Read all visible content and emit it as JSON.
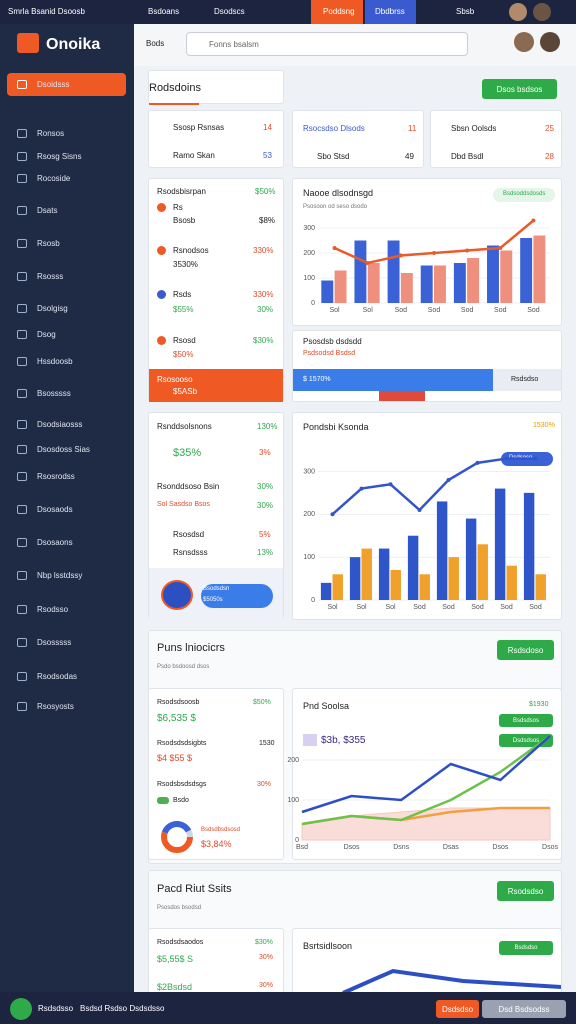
{
  "topbar": {
    "app": "Smrla Bsanid Dsoosb",
    "tabs": [
      "Bsdoans",
      "Dsodscs",
      "Poddsng",
      "Dbdbrss"
    ],
    "user": "Sbsb"
  },
  "brand": "Onoika",
  "search": {
    "label": "Bods",
    "placeholder": "Fonns bsalsm"
  },
  "nav": [
    "Dsoidsss",
    "Ronsos",
    "Rsosg Sisns",
    "Rocoside",
    "Dsats",
    "Rsosb",
    "Rsosss",
    "Dsolgisg",
    "Dsog",
    "Hssdoosb",
    "Bsosssss",
    "Dsodsiaosss",
    "Dsosdoss Sias",
    "Rsosrodss",
    "Dsosaods",
    "Dsosaons",
    "Nbp lsstdssy",
    "Rsodsso",
    "Dsosssss",
    "Rsodsodas",
    "Rsosyosts"
  ],
  "header": {
    "title": "Rodsdoins",
    "button": "Dsos bsdsos"
  },
  "stat_cards": [
    {
      "rows": [
        {
          "label": "Ssosp Rsnsas",
          "value": "14"
        },
        {
          "label": "Ramo Skan",
          "value": "53"
        }
      ]
    },
    {
      "rows": [
        {
          "label": "Rsocsdso Dlsods",
          "value": "11"
        },
        {
          "label": "Sbo Stsd",
          "value": "49"
        }
      ]
    },
    {
      "rows": [
        {
          "label": "Sbsn Oolsds",
          "value": "25"
        },
        {
          "label": "Dbd Bsdl",
          "value": "28"
        }
      ]
    }
  ],
  "list_card": {
    "title": "Rsodsbisrpan",
    "value": "$50%",
    "items": [
      {
        "label": "Rs",
        "sub": "Bsosb",
        "value": "$8%"
      },
      {
        "label": "Rsnodsos",
        "sub": "3530%",
        "value": "330%"
      },
      {
        "label": "Rsds",
        "sub": "$55%",
        "value": "330%",
        "sub_value": "30%"
      },
      {
        "label": "Rsosd",
        "sub": "$50%",
        "value": "$30%"
      }
    ],
    "footer": "Rsosooso",
    "footer_value": "$5ASb"
  },
  "progress_card": {
    "title": "Psosdsb dsdsdd",
    "subtitle": "Psdsodsd Bsdsd",
    "bar_label": "$ 1570%",
    "side": "Rsdsdso"
  },
  "list_card_2": {
    "title": "Rsnddsolsnons",
    "value": "130%",
    "items": [
      {
        "label": "$35%",
        "value": "3%"
      },
      {
        "label": "Rsonddsoso Bsin",
        "value": "30%"
      },
      {
        "label": "Sol Sasdso Bsos",
        "value": "30%"
      },
      {
        "label": "Rsosdsd",
        "value": "5%"
      },
      {
        "label": "Rsnsdsss",
        "value": "13%"
      }
    ],
    "pill": "Bsodsdsn",
    "pill_value": "$5050s"
  },
  "section_2": {
    "title": "Puns lniocicrs",
    "subtitle": "Psdo bsdoosd dsos",
    "button": "Rsdsdoso",
    "card": {
      "items": [
        {
          "label": "Rsodsdsoosb",
          "value": "$50%",
          "sub": "$6,535 $"
        },
        {
          "label": "Rsodsdsdsigbts",
          "value": "1530",
          "sub": "$4 $55 $"
        },
        {
          "label": "Rsodsbsdsdsgs",
          "value": "30%",
          "sub": "Bsdo"
        }
      ],
      "donut_label": "Bsdsdbsdsosd",
      "donut_value": "$3,84%"
    }
  },
  "section_3": {
    "title": "Pacd Riut Ssits",
    "subtitle": "Psosdos bsodsd",
    "button": "Rsodsdso",
    "card": {
      "items": [
        {
          "label": "Rsodsdsaodos",
          "value": "$30%"
        },
        {
          "label": "$5,55$ S",
          "value": "30%"
        },
        {
          "label": "$2Bsdsd",
          "value": "30%"
        }
      ]
    },
    "chart_title": "Bsrtsidlsoon",
    "chart_badge": "Bsdsdso"
  },
  "bottom_bar": {
    "icon_label": "Rsdsdsso",
    "text": "Bsdsd Rsdso Dsdsdsso",
    "button_1": "Dsdsdso",
    "button_2": "Dsd Bsdsodss"
  },
  "chart_data": [
    {
      "type": "bar",
      "title": "Naooe dlsodnsgd",
      "subtitle": "Psosoon od seso dsodo",
      "badge": "Bsdsoddsdosds",
      "categories": [
        "Sol",
        "Sol",
        "Sod",
        "Sod",
        "Sod",
        "Sod",
        "Sod"
      ],
      "series": [
        {
          "color": "#3a62d6",
          "values": [
            90,
            250,
            250,
            150,
            160,
            230,
            260
          ]
        },
        {
          "color": "#ef8f7d",
          "values": [
            130,
            160,
            120,
            150,
            180,
            210,
            270
          ]
        },
        {
          "type": "line",
          "color": "#e85c2c",
          "values": [
            220,
            160,
            190,
            200,
            210,
            220,
            330
          ]
        }
      ],
      "ylim": [
        0,
        340
      ],
      "yticks": [
        0,
        100,
        200,
        300
      ]
    },
    {
      "type": "bar",
      "title": "Pondsbi Ksonda",
      "badge": "Dsdsoso",
      "badge_value": "1530%",
      "categories": [
        "Sol",
        "Sol",
        "Sol",
        "Sod",
        "Sod",
        "Sod",
        "Sod",
        "Sod"
      ],
      "series": [
        {
          "color": "#2f56c9",
          "values": [
            40,
            100,
            120,
            150,
            230,
            190,
            260,
            250
          ]
        },
        {
          "color": "#f0a12b",
          "values": [
            60,
            120,
            70,
            60,
            100,
            130,
            80,
            60
          ]
        },
        {
          "type": "line",
          "color": "#3355cc",
          "values": [
            200,
            260,
            270,
            210,
            280,
            320,
            330,
            330
          ]
        }
      ],
      "ylim": [
        0,
        350
      ],
      "yticks": [
        0,
        100,
        200,
        300
      ]
    },
    {
      "type": "line",
      "title": "Pnd Soolsa",
      "title_value": "$1930",
      "headline": "$3b, $355",
      "badges": [
        "Bsdsdsos",
        "Dsdsdsos"
      ],
      "categories": [
        "Bsd",
        "Dsos",
        "Dsns",
        "Dsas",
        "Dsos",
        "Dsos"
      ],
      "series": [
        {
          "color": "#f6c7c0",
          "area": true,
          "values": [
            40,
            60,
            70,
            80,
            80,
            80
          ]
        },
        {
          "color": "#f0a040",
          "values": [
            40,
            60,
            50,
            70,
            80,
            80
          ]
        },
        {
          "color": "#6cc24a",
          "values": [
            40,
            60,
            50,
            100,
            170,
            260
          ]
        },
        {
          "color": "#2d4fc4",
          "values": [
            70,
            110,
            100,
            190,
            150,
            260
          ]
        }
      ],
      "ylim": [
        0,
        300
      ],
      "yticks": [
        0,
        100,
        200
      ]
    }
  ]
}
